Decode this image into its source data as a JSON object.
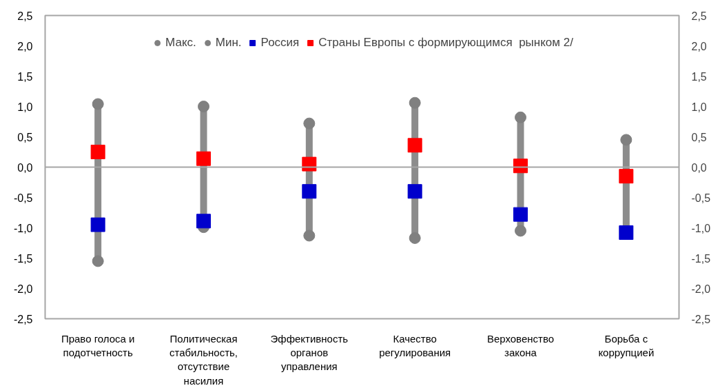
{
  "chart_data": {
    "type": "scatter",
    "categories": [
      "Право голоса и\nподотчетность",
      "Политическая\nстабильность,\nотсутствие\nнасилия",
      "Эффективность\nорганов\nуправления",
      "Качество\nрегулирования",
      "Верховенство\nзакона",
      "Борьба с\nкоррупцией"
    ],
    "series": [
      {
        "name": "Макс.",
        "color": "#808080",
        "marker": "circle",
        "values": [
          1.04,
          1.0,
          0.72,
          1.06,
          0.82,
          0.45
        ]
      },
      {
        "name": "Мин.",
        "color": "#808080",
        "marker": "circle",
        "values": [
          -1.55,
          -0.99,
          -1.13,
          -1.17,
          -1.05,
          null
        ]
      },
      {
        "name": "Россия",
        "color": "#0000cc",
        "marker": "square",
        "values": [
          -0.95,
          -0.89,
          -0.4,
          -0.4,
          -0.78,
          -1.08
        ]
      },
      {
        "name": "Страны Европы с формирующимся  рынком 2/",
        "color": "#ff0000",
        "marker": "square",
        "values": [
          0.25,
          0.14,
          0.05,
          0.36,
          0.02,
          -0.15
        ]
      }
    ],
    "ylim": [
      -2.5,
      2.5
    ],
    "yticks": [
      {
        "value": -2.5,
        "label": "-2,5"
      },
      {
        "value": -2.0,
        "label": "-2,0"
      },
      {
        "value": -1.5,
        "label": "-1,5"
      },
      {
        "value": -1.0,
        "label": "-1,0"
      },
      {
        "value": -0.5,
        "label": "-0,5"
      },
      {
        "value": 0,
        "label": "0,0"
      },
      {
        "value": 0.5,
        "label": "0,5"
      },
      {
        "value": 1.0,
        "label": "1,0"
      },
      {
        "value": 1.5,
        "label": "1,5"
      },
      {
        "value": 2.0,
        "label": "2,0"
      },
      {
        "value": 2.5,
        "label": "2,5"
      }
    ],
    "y2lim": [
      -2.5,
      2.5
    ],
    "y2ticks": [
      {
        "value": -2.5,
        "label": "-2,5"
      },
      {
        "value": -2.0,
        "label": "-2,0"
      },
      {
        "value": -1.5,
        "label": "-1,5"
      },
      {
        "value": -1.0,
        "label": "-1,0"
      },
      {
        "value": -0.5,
        "label": "-0,5"
      },
      {
        "value": 0,
        "label": "0,0"
      },
      {
        "value": 0.5,
        "label": "0,5"
      },
      {
        "value": 1.0,
        "label": "1,0"
      },
      {
        "value": 1.5,
        "label": "1,5"
      },
      {
        "value": 2.0,
        "label": "2,0"
      },
      {
        "value": 2.5,
        "label": "2,5"
      }
    ],
    "ref_lines": [
      {
        "axis": "y",
        "value": 0,
        "label": null,
        "color": "#a6a6a6"
      }
    ],
    "grid": false,
    "legend": "top"
  }
}
